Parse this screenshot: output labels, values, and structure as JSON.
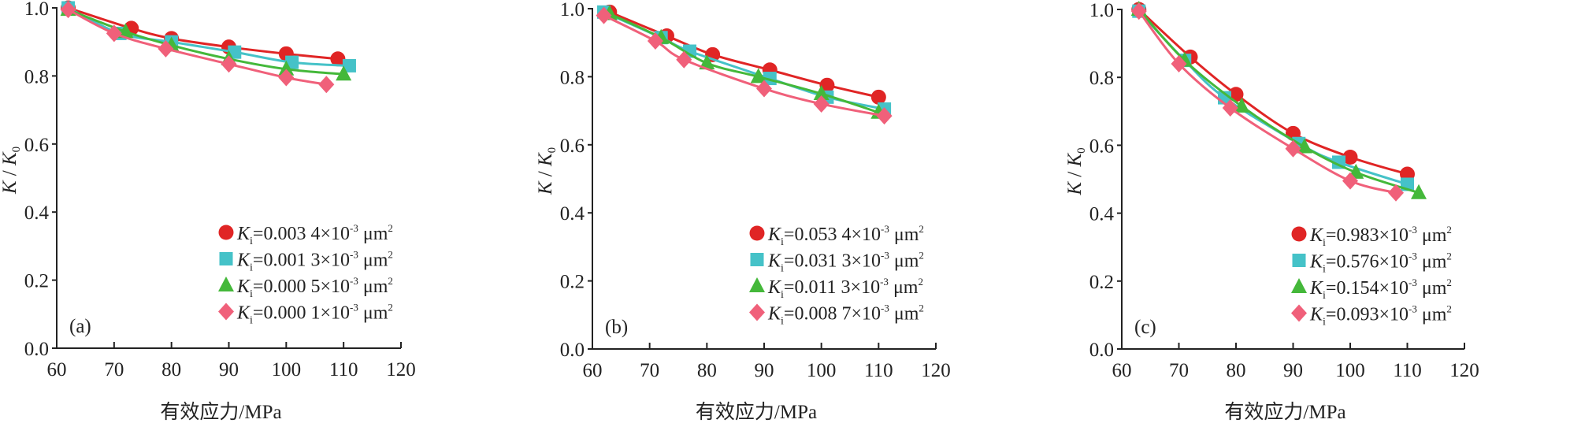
{
  "chart_data": [
    {
      "type": "line",
      "panel_label": "(a)",
      "xlabel": "有效应力/MPa",
      "ylabel": {
        "num": "K",
        "sep": "/",
        "den": "K",
        "den_sub": "0"
      },
      "xlim": [
        60,
        120
      ],
      "ylim": [
        0,
        1.0
      ],
      "xticks": [
        "60",
        "70",
        "80",
        "90",
        "100",
        "110",
        "120"
      ],
      "yticks": [
        "0.0",
        "0.2",
        "0.4",
        "0.6",
        "0.8",
        "1.0"
      ],
      "legend_position": "bottom-right",
      "series": [
        {
          "name": {
            "k": "K",
            "sub": "i",
            "val": "=0.003 4×10",
            "exp": "-3",
            "unit": " μm",
            "uexp": "2"
          },
          "marker": "circle",
          "color": "#e02525",
          "x": [
            62,
            73,
            80,
            90,
            100,
            109
          ],
          "y": [
            1.0,
            0.94,
            0.91,
            0.885,
            0.865,
            0.85
          ]
        },
        {
          "name": {
            "k": "K",
            "sub": "i",
            "val": "=0.001 3×10",
            "exp": "-3",
            "unit": " μm",
            "uexp": "2"
          },
          "marker": "square",
          "color": "#45c2c8",
          "x": [
            62,
            71,
            80,
            91,
            101,
            111
          ],
          "y": [
            1.0,
            0.925,
            0.9,
            0.87,
            0.84,
            0.83
          ]
        },
        {
          "name": {
            "k": "K",
            "sub": "i",
            "val": "=0.000 5×10",
            "exp": "-3",
            "unit": " μm",
            "uexp": "2"
          },
          "marker": "triangle",
          "color": "#44b83a",
          "x": [
            62,
            72,
            80,
            90,
            100,
            110
          ],
          "y": [
            0.995,
            0.93,
            0.89,
            0.85,
            0.82,
            0.805
          ]
        },
        {
          "name": {
            "k": "K",
            "sub": "i",
            "val": "=0.000 1×10",
            "exp": "-3",
            "unit": " μm",
            "uexp": "2"
          },
          "marker": "diamond",
          "color": "#f0607a",
          "x": [
            62,
            70,
            79,
            90,
            100,
            107
          ],
          "y": [
            0.995,
            0.925,
            0.88,
            0.835,
            0.795,
            0.775
          ]
        }
      ]
    },
    {
      "type": "line",
      "panel_label": "(b)",
      "xlabel": "有效应力/MPa",
      "ylabel": {
        "num": "K",
        "sep": "/",
        "den": "K",
        "den_sub": "0"
      },
      "xlim": [
        60,
        120
      ],
      "ylim": [
        0,
        1.0
      ],
      "xticks": [
        "60",
        "70",
        "80",
        "90",
        "100",
        "110",
        "120"
      ],
      "yticks": [
        "0.0",
        "0.2",
        "0.4",
        "0.6",
        "0.8",
        "1.0"
      ],
      "legend_position": "bottom-right",
      "series": [
        {
          "name": {
            "k": "K",
            "sub": "i",
            "val": "=0.053 4×10",
            "exp": "-3",
            "unit": " μm",
            "uexp": "2"
          },
          "marker": "circle",
          "color": "#e02525",
          "x": [
            63,
            73,
            81,
            91,
            101,
            110
          ],
          "y": [
            0.99,
            0.92,
            0.865,
            0.82,
            0.775,
            0.74
          ]
        },
        {
          "name": {
            "k": "K",
            "sub": "i",
            "val": "=0.031 3×10",
            "exp": "-3",
            "unit": " μm",
            "uexp": "2"
          },
          "marker": "square",
          "color": "#45c2c8",
          "x": [
            62,
            72,
            77,
            91,
            101,
            111
          ],
          "y": [
            0.99,
            0.915,
            0.875,
            0.795,
            0.74,
            0.705
          ]
        },
        {
          "name": {
            "k": "K",
            "sub": "i",
            "val": "=0.011 3×10",
            "exp": "-3",
            "unit": " μm",
            "uexp": "2"
          },
          "marker": "triangle",
          "color": "#44b83a",
          "x": [
            63,
            72,
            80,
            89,
            100,
            110
          ],
          "y": [
            0.985,
            0.915,
            0.84,
            0.8,
            0.75,
            0.695
          ]
        },
        {
          "name": {
            "k": "K",
            "sub": "i",
            "val": "=0.008 7×10",
            "exp": "-3",
            "unit": " μm",
            "uexp": "2"
          },
          "marker": "diamond",
          "color": "#f0607a",
          "x": [
            62,
            71,
            76,
            90,
            100,
            111
          ],
          "y": [
            0.98,
            0.905,
            0.85,
            0.765,
            0.72,
            0.685
          ]
        }
      ]
    },
    {
      "type": "line",
      "panel_label": "(c)",
      "xlabel": "有效应力/MPa",
      "ylabel": {
        "num": "K",
        "sep": "/",
        "den": "K",
        "den_sub": "0"
      },
      "xlim": [
        60,
        120
      ],
      "ylim": [
        0,
        1.0
      ],
      "xticks": [
        "60",
        "70",
        "80",
        "90",
        "100",
        "110",
        "120"
      ],
      "yticks": [
        "0.0",
        "0.2",
        "0.4",
        "0.6",
        "0.8",
        "1.0"
      ],
      "legend_position": "bottom-right",
      "series": [
        {
          "name": {
            "k": "K",
            "sub": "i",
            "val": "=0.983×10",
            "exp": "-3",
            "unit": " μm",
            "uexp": "2"
          },
          "marker": "circle",
          "color": "#e02525",
          "x": [
            63,
            72,
            80,
            90,
            100,
            110
          ],
          "y": [
            1.0,
            0.86,
            0.75,
            0.635,
            0.565,
            0.515
          ]
        },
        {
          "name": {
            "k": "K",
            "sub": "i",
            "val": "=0.576×10",
            "exp": "-3",
            "unit": " μm",
            "uexp": "2"
          },
          "marker": "square",
          "color": "#45c2c8",
          "x": [
            63,
            71,
            78,
            91,
            98,
            110
          ],
          "y": [
            0.995,
            0.85,
            0.74,
            0.605,
            0.55,
            0.485
          ]
        },
        {
          "name": {
            "k": "K",
            "sub": "i",
            "val": "=0.154×10",
            "exp": "-3",
            "unit": " μm",
            "uexp": "2"
          },
          "marker": "triangle",
          "color": "#44b83a",
          "x": [
            63,
            71,
            81,
            92,
            101,
            112
          ],
          "y": [
            1.0,
            0.85,
            0.715,
            0.595,
            0.52,
            0.46
          ]
        },
        {
          "name": {
            "k": "K",
            "sub": "i",
            "val": "=0.093×10",
            "exp": "-3",
            "unit": " μm",
            "uexp": "2"
          },
          "marker": "diamond",
          "color": "#f0607a",
          "x": [
            63,
            70,
            79,
            90,
            100,
            108
          ],
          "y": [
            0.995,
            0.84,
            0.71,
            0.59,
            0.495,
            0.46
          ]
        }
      ]
    }
  ]
}
